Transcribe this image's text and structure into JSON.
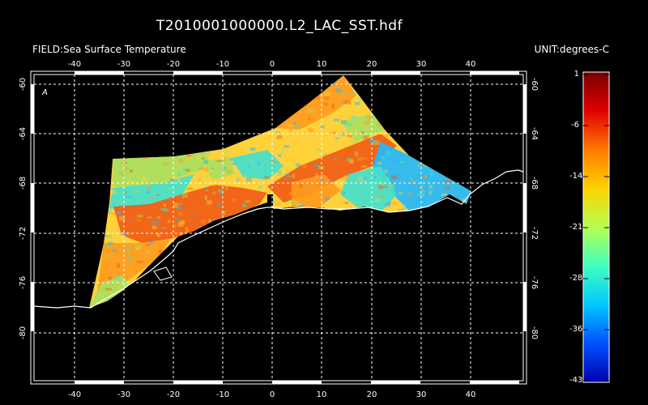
{
  "header": {
    "title": "T2010001000000.L2_LAC_SST.hdf",
    "field_label": "FIELD:Sea Surface Temperature",
    "unit_label": "UNIT:degrees-C"
  },
  "map": {
    "lon_ticks": [
      "-40",
      "-30",
      "-20",
      "-10",
      "0",
      "10",
      "20",
      "30",
      "40"
    ],
    "lat_ticks": [
      "-60",
      "-64",
      "-68",
      "-72",
      "-76",
      "-80"
    ],
    "grid": true,
    "marker": "A"
  },
  "colorbar": {
    "ticks": [
      "1",
      "-6",
      "-14",
      "-21",
      "-28",
      "-36",
      "-43"
    ],
    "colors": [
      "#7a0000",
      "#e00000",
      "#ff7a00",
      "#ffd200",
      "#b4ff50",
      "#40ffc0",
      "#00c8ff",
      "#0050ff",
      "#0000b0"
    ]
  },
  "palette": {
    "background": "#000000",
    "grid": "#ffffff",
    "coast": "#ffffff",
    "cold": "#20b8ff",
    "cool": "#40e0d0",
    "mild": "#a8e060",
    "warm": "#ffd23c",
    "warmer": "#ff9a1e",
    "hot": "#f05a14"
  }
}
